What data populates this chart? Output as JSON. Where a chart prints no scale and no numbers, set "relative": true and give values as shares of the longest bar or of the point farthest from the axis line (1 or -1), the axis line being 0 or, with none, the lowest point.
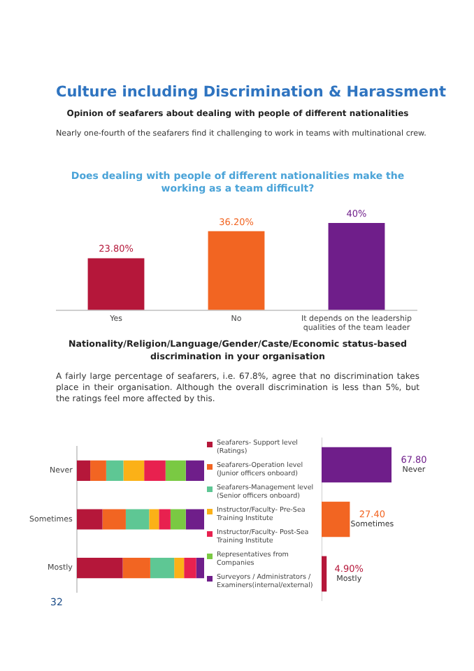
{
  "chart_data": [
    {
      "type": "bar",
      "title": "Does dealing with people of different nationalities make the working as a team difficult?",
      "annotations": [
        "Culture including Discrimination & Harassment",
        "Opinion of seafarers about dealing with people of different nationalities",
        "Nearly one-fourth of the seafarers find it challenging to work in teams with multinational crew."
      ],
      "categories": [
        "Yes",
        "No",
        "It depends on the leadership qualities of the team leader"
      ],
      "values": [
        23.8,
        36.2,
        40
      ],
      "colors": [
        "#b5173a",
        "#f26522",
        "#6f1e8a"
      ],
      "value_labels": [
        "23.80%",
        "36.20%",
        "40%"
      ],
      "tick_labels": "x"
    },
    {
      "type": "bar",
      "orientation": "horizontal",
      "stacked": true,
      "relative": true,
      "legend": "right",
      "annotations": [
        "Nationality/Religion/Language/Gender/Caste/Economic status-based discrimination in your organisation",
        "A fairly large percentage of seafarers, i.e. 67.8%, agree that no discrimination takes place in their organisation. Although the overall discrimination is less than 5%, but the ratings feel more affected by this."
      ],
      "categories": [
        "Never",
        "Sometimes",
        "Mostly"
      ],
      "series": [
        {
          "name": "Seafarers- Support level (Ratings)",
          "color": "#b5173a",
          "values": [
            0.106,
            0.202,
            0.361
          ]
        },
        {
          "name": "Seafarers-Operation level (Junior officers onboard)",
          "color": "#f26522",
          "values": [
            0.125,
            0.183,
            0.216
          ]
        },
        {
          "name": "Seafarers-Management level (Senior officers onboard)",
          "color": "#5ec794",
          "values": [
            0.135,
            0.183,
            0.188
          ]
        },
        {
          "name": "Instructor/Faculty- Pre-Sea Training Institute",
          "color": "#fbb117",
          "values": [
            0.163,
            0.077,
            0.077
          ]
        },
        {
          "name": "Instructor/Faculty- Post-Sea Training Institute",
          "color": "#e8214f",
          "values": [
            0.168,
            0.091,
            0.096
          ]
        },
        {
          "name": "Representatives from Companies",
          "color": "#7ac943",
          "values": [
            0.159,
            0.12,
            0
          ]
        },
        {
          "name": "Surveyors / Administrators / Examiners(internal/external)",
          "color": "#6f1e8a",
          "values": [
            0.144,
            0.144,
            0.062
          ]
        }
      ]
    },
    {
      "type": "bar",
      "orientation": "horizontal",
      "categories": [
        "Never",
        "Sometimes",
        "Mostly"
      ],
      "values": [
        67.8,
        27.4,
        4.9
      ],
      "colors": [
        "#6f1e8a",
        "#f26522",
        "#b5173a"
      ],
      "value_labels": [
        "67.80",
        "27.40",
        "4.90%"
      ],
      "tick_labels": false,
      "annotations": [
        "32"
      ]
    }
  ]
}
